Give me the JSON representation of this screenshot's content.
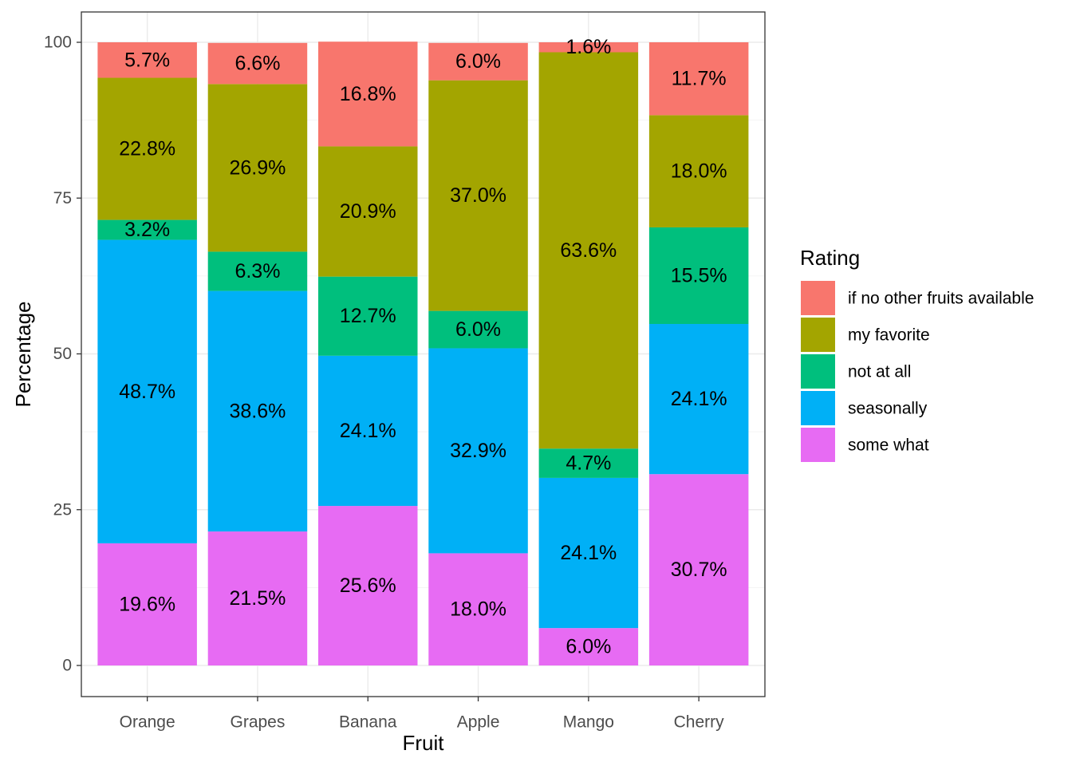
{
  "chart_data": {
    "type": "bar",
    "stacked": true,
    "xlabel": "Fruit",
    "ylabel": "Percentage",
    "ylim": [
      0,
      100
    ],
    "yticks": [
      0,
      25,
      50,
      75,
      100
    ],
    "grid": true,
    "legend_placement": "right",
    "legend_title": "Rating",
    "categories": [
      "Orange",
      "Grapes",
      "Banana",
      "Apple",
      "Mango",
      "Cherry"
    ],
    "series": [
      {
        "name": "some what",
        "color": "#E76BF3",
        "values": [
          19.6,
          21.5,
          25.6,
          18.0,
          6.0,
          30.7
        ],
        "labels": [
          "19.6%",
          "21.5%",
          "25.6%",
          "18.0%",
          "6.0%",
          "30.7%"
        ]
      },
      {
        "name": "seasonally",
        "color": "#00B0F6",
        "values": [
          48.7,
          38.6,
          24.1,
          32.9,
          24.1,
          24.1
        ],
        "labels": [
          "48.7%",
          "38.6%",
          "24.1%",
          "32.9%",
          "24.1%",
          "24.1%"
        ]
      },
      {
        "name": "not at all",
        "color": "#00BF7D",
        "values": [
          3.2,
          6.3,
          12.7,
          6.0,
          4.7,
          15.5
        ],
        "labels": [
          "3.2%",
          "6.3%",
          "12.7%",
          "6.0%",
          "4.7%",
          "15.5%"
        ]
      },
      {
        "name": "my favorite",
        "color": "#A3A500",
        "values": [
          22.8,
          26.9,
          20.9,
          37.0,
          63.6,
          18.0
        ],
        "labels": [
          "22.8%",
          "26.9%",
          "20.9%",
          "37.0%",
          "63.6%",
          "18.0%"
        ]
      },
      {
        "name": "if no other fruits available",
        "color": "#F8766D",
        "values": [
          5.7,
          6.6,
          16.8,
          6.0,
          1.6,
          11.7
        ],
        "labels": [
          "5.7%",
          "6.6%",
          "16.8%",
          "6.0%",
          "1.6%",
          "11.7%"
        ]
      }
    ],
    "legend_order": [
      "if no other fruits available",
      "my favorite",
      "not at all",
      "seasonally",
      "some what"
    ]
  }
}
